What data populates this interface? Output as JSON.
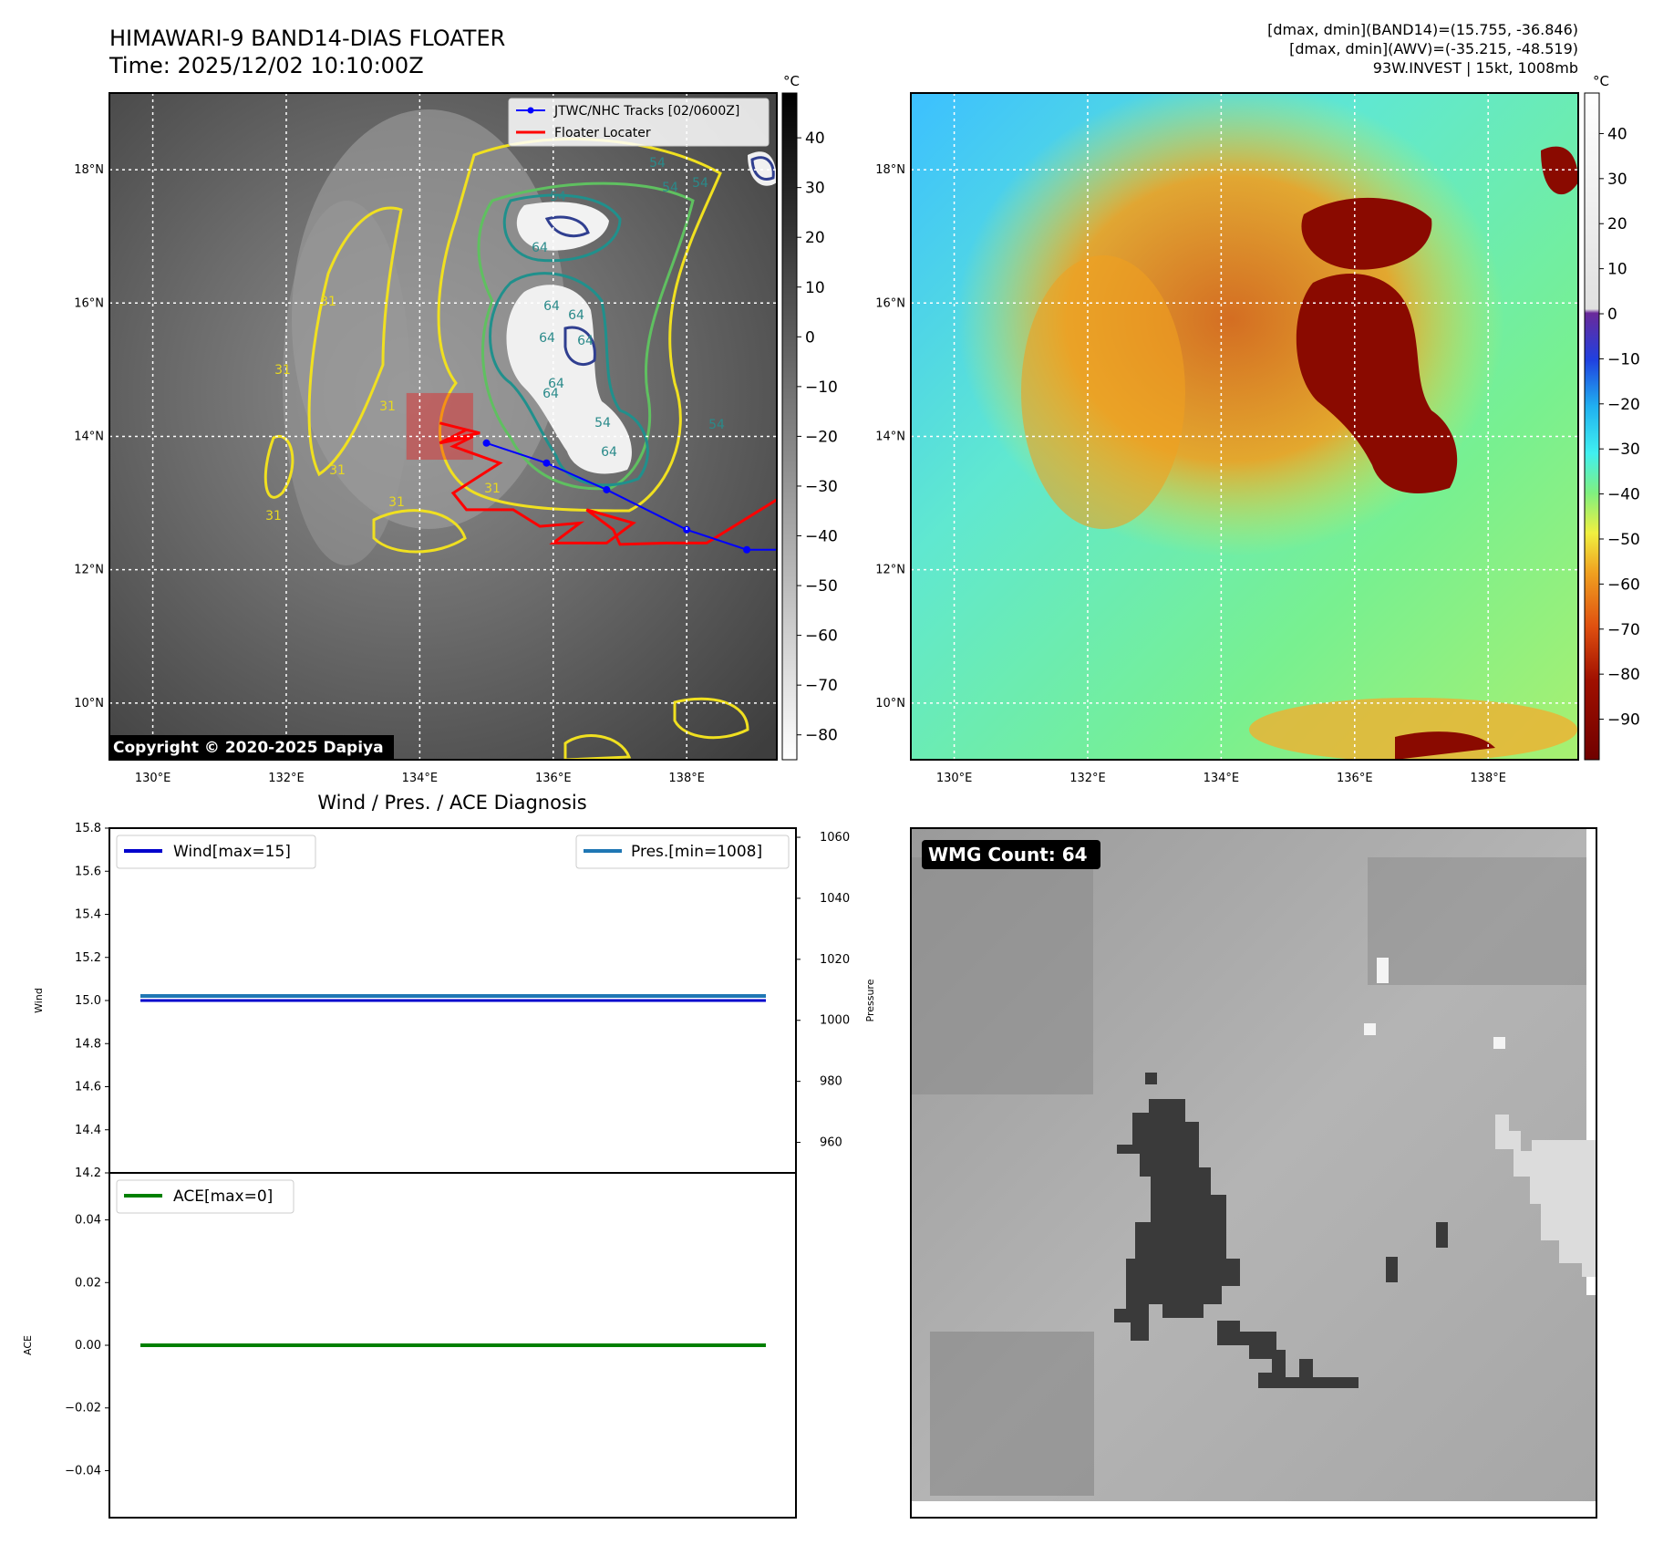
{
  "header": {
    "title_line1": "HIMAWARI-9 BAND14-DIAS FLOATER",
    "title_line2": "Time: 2025/12/02 10:10:00Z",
    "stats_line1": "[dmax, dmin](BAND14)=(15.755, -36.846)",
    "stats_line2": "[dmax, dmin](AWV)=(-35.215, -48.519)",
    "stats_line3": "93W.INVEST | 15kt, 1008mb"
  },
  "colors": {
    "track_blue": "#0000ff",
    "floater_red": "#ff0000",
    "wind_line": "#0000cc",
    "pres_line": "#1f77b4",
    "ace_line": "#008000",
    "contour_yellow": "#f0e020",
    "contour_green": "#5fc060",
    "contour_teal": "#20908c",
    "contour_navy": "#303f90"
  },
  "chart_data": [
    {
      "type": "heatmap",
      "id": "band14-ir-map",
      "x_ticks": [
        "130°E",
        "132°E",
        "134°E",
        "136°E",
        "138°E"
      ],
      "y_ticks": [
        "10°N",
        "12°N",
        "14°N",
        "16°N",
        "18°N"
      ],
      "xlim": [
        129.35,
        139.35
      ],
      "ylim": [
        9.15,
        19.15
      ],
      "grid": true,
      "colorbar": {
        "unit": "°C",
        "ticks": [
          "40",
          "30",
          "20",
          "10",
          "0",
          "−10",
          "−20",
          "−30",
          "−40",
          "−50",
          "−60",
          "−70",
          "−80"
        ],
        "range": [
          -85,
          49
        ]
      },
      "contour_labels": [
        "31",
        "31",
        "31",
        "31",
        "31",
        "31",
        "54",
        "64",
        "64",
        "54",
        "64",
        "64",
        "64",
        "64",
        "64",
        "64",
        "54",
        "54",
        "54",
        "54",
        "31"
      ],
      "legend": {
        "placement": "top-right",
        "entries": [
          "JTWC/NHC Tracks [02/0600Z]",
          "Floater Locater"
        ]
      },
      "jtwc_track": {
        "lon": [
          139.35,
          138.9,
          138.0,
          136.8,
          135.9,
          135.0
        ],
        "lat": [
          12.3,
          12.3,
          12.6,
          13.2,
          13.6,
          13.9
        ]
      },
      "floater_track": {
        "lon": [
          139.35,
          138.3,
          137.7,
          137.0,
          136.9,
          136.5,
          137.2,
          136.8,
          136.0,
          136.4,
          135.8,
          135.4,
          134.7,
          134.5,
          135.2,
          134.5,
          134.8,
          134.3,
          134.7,
          134.4,
          134.9,
          134.3
        ],
        "lat": [
          13.05,
          12.4,
          12.4,
          12.38,
          12.6,
          12.9,
          12.7,
          12.4,
          12.4,
          12.7,
          12.65,
          12.9,
          12.9,
          13.15,
          13.6,
          13.85,
          14.0,
          13.9,
          14.1,
          13.95,
          14.05,
          14.2
        ]
      },
      "floater_box": {
        "lon": [
          133.8,
          134.8
        ],
        "lat": [
          13.65,
          14.65
        ]
      },
      "copyright": "Copyright © 2020-2025 Dapiya"
    },
    {
      "type": "heatmap",
      "id": "awv-color-map",
      "x_ticks": [
        "130°E",
        "132°E",
        "134°E",
        "136°E",
        "138°E"
      ],
      "y_ticks": [
        "10°N",
        "12°N",
        "14°N",
        "16°N",
        "18°N"
      ],
      "xlim": [
        129.35,
        139.35
      ],
      "ylim": [
        9.15,
        19.15
      ],
      "grid": true,
      "colorbar": {
        "unit": "°C",
        "ticks": [
          "40",
          "30",
          "20",
          "10",
          "0",
          "−10",
          "−20",
          "−30",
          "−40",
          "−50",
          "−60",
          "−70",
          "−80",
          "−90"
        ],
        "range": [
          -99,
          49
        ]
      }
    },
    {
      "type": "line",
      "id": "wind-pressure-panel",
      "title": "Wind / Pres. / ACE Diagnosis",
      "ylabel": "Wind",
      "y2label": "Pressure",
      "ylim": [
        14.2,
        15.8
      ],
      "y_ticks": [
        "15.8",
        "15.6",
        "15.4",
        "15.2",
        "15.0",
        "14.8",
        "14.6",
        "14.4",
        "14.2"
      ],
      "y2lim": [
        950,
        1063
      ],
      "y2_ticks": [
        "1060",
        "1040",
        "1020",
        "1000",
        "980",
        "960"
      ],
      "series": [
        {
          "name": "Wind[max=15]",
          "values": [
            15,
            15
          ]
        },
        {
          "name": "Pres.[min=1008]",
          "values": [
            1008,
            1008
          ]
        }
      ]
    },
    {
      "type": "line",
      "id": "ace-panel",
      "ylabel": "ACE",
      "ylim": [
        -0.055,
        0.055
      ],
      "y_ticks": [
        "0.04",
        "0.02",
        "0.00",
        "−0.02",
        "−0.04"
      ],
      "series": [
        {
          "name": "ACE[max=0]",
          "values": [
            0,
            0
          ]
        }
      ]
    },
    {
      "type": "heatmap",
      "id": "wmg-panel",
      "badge": "WMG Count: 64"
    }
  ]
}
